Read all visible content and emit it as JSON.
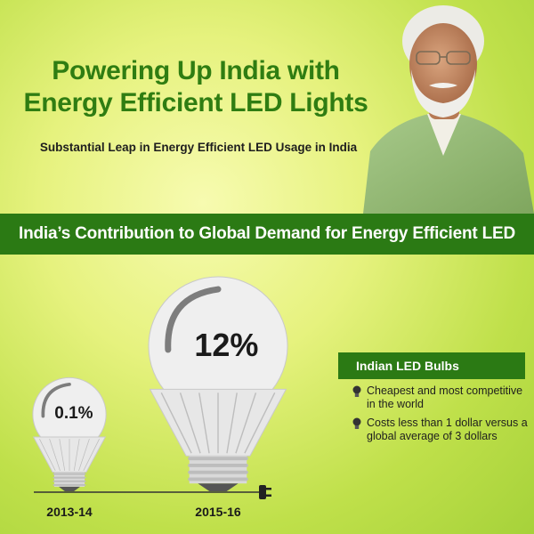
{
  "header": {
    "title_line1": "Powering Up India with",
    "title_line2": "Energy Efficient LED Lights",
    "subtitle": "Substantial Leap in Energy Efficient LED Usage in India"
  },
  "banner": {
    "text": "India’s Contribution to Global Demand for Energy Efficient LED"
  },
  "chart_data": {
    "type": "bar",
    "title": "India’s Contribution to Global Demand for Energy Efficient LED",
    "categories": [
      "2013-14",
      "2015-16"
    ],
    "values": [
      0.1,
      12
    ],
    "value_labels": [
      "0.1%",
      "12%"
    ],
    "unit": "%"
  },
  "info": {
    "heading": "Indian LED Bulbs",
    "items": [
      "Cheapest and most competitive in the world",
      "Costs less than 1 dollar versus a global average of 3 dollars"
    ]
  },
  "colors": {
    "brand_green": "#2b7a14",
    "title_green": "#2f7d12",
    "bulb_white": "#eeeeee"
  },
  "icons": [
    "bulb-bullet-icon",
    "plug-icon"
  ]
}
